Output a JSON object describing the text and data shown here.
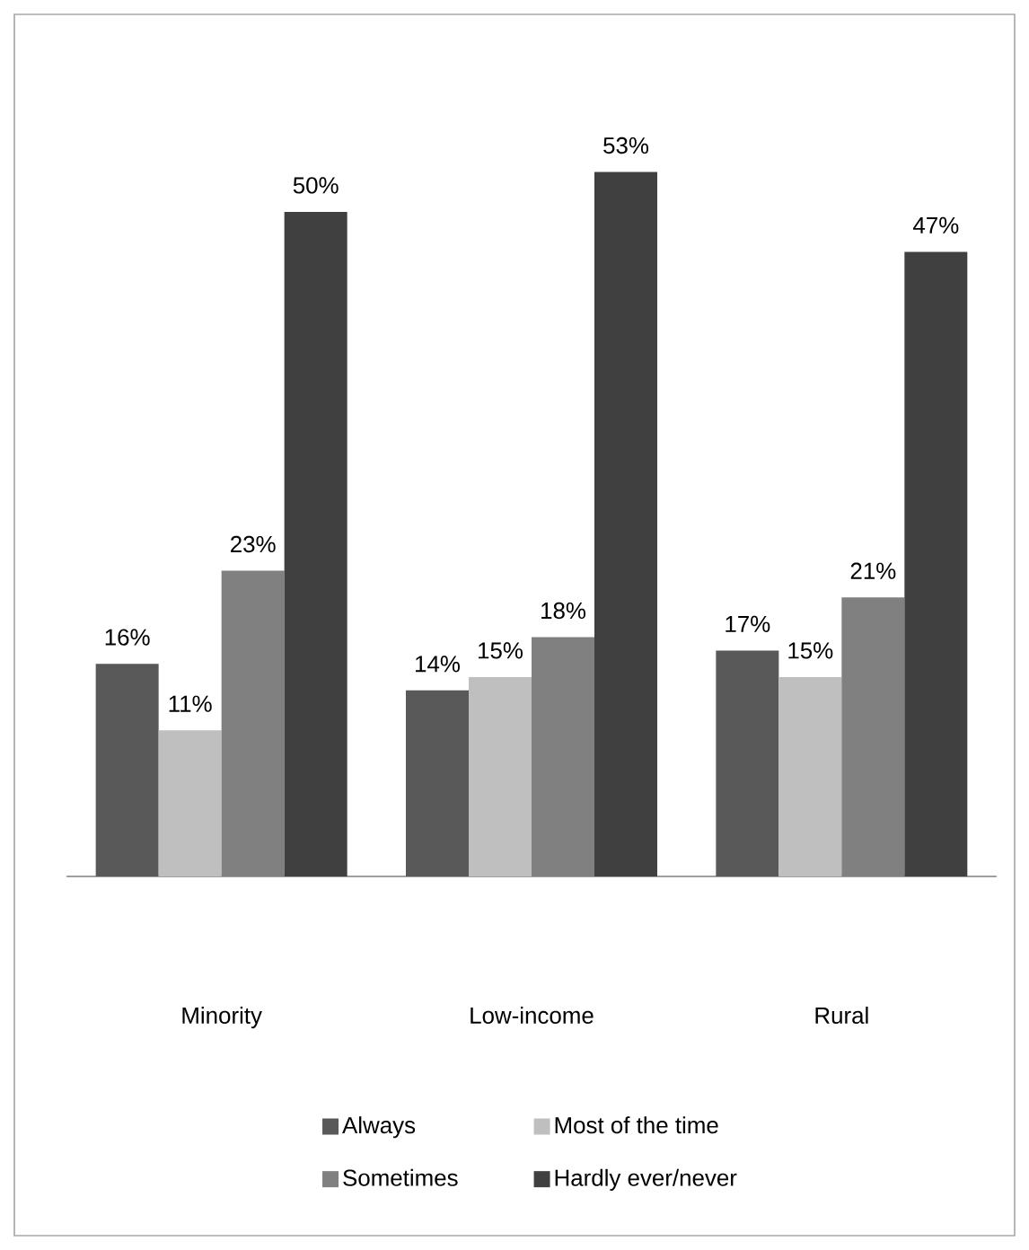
{
  "chart_data": {
    "type": "bar",
    "categories": [
      "Minority",
      "Low-income",
      "Rural"
    ],
    "series": [
      {
        "name": "Always",
        "color": "#595959",
        "values": [
          16,
          14,
          17
        ],
        "value_labels": [
          "16%",
          "14%",
          "17%"
        ]
      },
      {
        "name": "Most of the time",
        "color": "#bfbfbf",
        "values": [
          11,
          15,
          15
        ],
        "value_labels": [
          "11%",
          "15%",
          "15%"
        ]
      },
      {
        "name": "Sometimes",
        "color": "#808080",
        "values": [
          23,
          18,
          21
        ],
        "value_labels": [
          "23%",
          "18%",
          "21%"
        ]
      },
      {
        "name": "Hardly ever/never",
        "color": "#404040",
        "values": [
          50,
          53,
          47
        ],
        "value_labels": [
          "50%",
          "53%",
          "47%"
        ]
      }
    ],
    "tick_labels": "x",
    "legend": "bottom"
  }
}
